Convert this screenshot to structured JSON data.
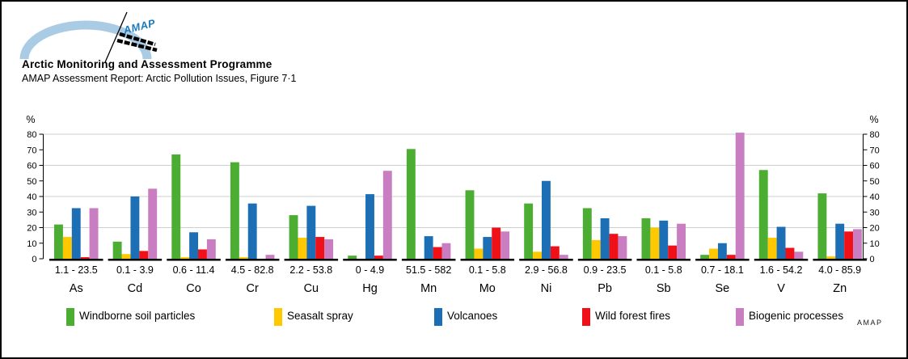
{
  "page": {
    "title": "Arctic Monitoring and Assessment Programme",
    "subtitle": "AMAP Assessment Report: Arctic Pollution Issues, Figure 7·1",
    "logo_text": "AMAP",
    "footer_mark": "AMAP"
  },
  "colors": {
    "logo_arc": "#A9CBE4",
    "logo_text": "#1A7ABD",
    "grid": "#CFCFCF",
    "axis": "#000000"
  },
  "axis": {
    "unit_left": "%",
    "unit_right": "%",
    "ticks": [
      0,
      10,
      20,
      30,
      40,
      50,
      60,
      70,
      80
    ],
    "gridlines": [
      20,
      40,
      60,
      80
    ],
    "max": 80
  },
  "chart_data": {
    "type": "bar",
    "title": "AMAP Assessment Report: Arctic Pollution Issues, Figure 7·1",
    "ylabel": "%",
    "ylim": [
      0,
      80
    ],
    "grid": "horizontal, every 20",
    "legend_position": "bottom",
    "categories": [
      "As",
      "Cd",
      "Co",
      "Cr",
      "Cu",
      "Hg",
      "Mn",
      "Mo",
      "Ni",
      "Pb",
      "Sb",
      "Se",
      "V",
      "Zn"
    ],
    "ranges": [
      "1.1 - 23.5",
      "0.1 - 3.9",
      "0.6 - 11.4",
      "4.5 - 82.8",
      "2.2 - 53.8",
      "0 - 4.9",
      "51.5 - 582",
      "0.1 - 5.8",
      "2.9 - 56.8",
      "0.9 - 23.5",
      "0.1 - 5.8",
      "0.7 - 18.1",
      "1.6 - 54.2",
      "4.0 - 85.9"
    ],
    "series": [
      {
        "name": "Windborne soil particles",
        "color": "#4CAD33",
        "values": [
          22,
          11,
          67,
          62,
          28,
          2,
          70.5,
          44,
          35.5,
          32.5,
          26,
          2.5,
          57,
          42
        ]
      },
      {
        "name": "Seasalt spray",
        "color": "#FFC800",
        "values": [
          14,
          3,
          1,
          1,
          13.5,
          0,
          0,
          6.5,
          4.5,
          12,
          20,
          6.5,
          13.5,
          1.5
        ]
      },
      {
        "name": "Volcanoes",
        "color": "#1C6FB5",
        "values": [
          32.5,
          40,
          17,
          35.5,
          34,
          41.5,
          14.5,
          14,
          50,
          26,
          24.5,
          10,
          20.5,
          22.5
        ]
      },
      {
        "name": "Wild forest fires",
        "color": "#F01018",
        "values": [
          1,
          5,
          6,
          0,
          14,
          2,
          7.5,
          20,
          8,
          16,
          8.5,
          2.5,
          7,
          17.5
        ]
      },
      {
        "name": "Biogenic processes",
        "color": "#C97EC1",
        "values": [
          32.5,
          45,
          12.5,
          2.5,
          12.5,
          56.5,
          10,
          17.5,
          2.5,
          14.5,
          22.5,
          81,
          4.5,
          19
        ]
      }
    ]
  }
}
